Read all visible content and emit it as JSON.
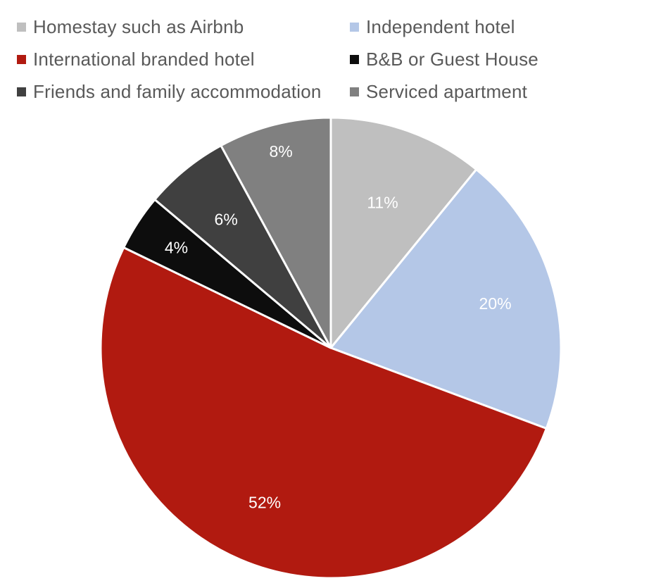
{
  "chart_data": {
    "type": "pie",
    "title": "",
    "legend_position": "top",
    "series": [
      {
        "labels": [
          "Homestay such as Airbnb",
          "Independent hotel",
          "International branded hotel",
          "B&B or Guest House",
          "Friends and family accommodation",
          "Serviced apartment"
        ],
        "values": [
          11,
          20,
          52,
          4,
          6,
          8
        ],
        "data_labels": [
          "11%",
          "20%",
          "52%",
          "4%",
          "6%",
          "8%"
        ],
        "colors": [
          "#bfbfbf",
          "#b4c7e7",
          "#b11a10",
          "#0d0d0d",
          "#404040",
          "#808080"
        ],
        "label_colors": [
          "#ffffff",
          "#ffffff",
          "#ffffff",
          "#ffffff",
          "#ffffff",
          "#ffffff"
        ]
      }
    ],
    "legend": [
      {
        "label": "Homestay such as Airbnb",
        "color": "#bfbfbf"
      },
      {
        "label": "Independent hotel",
        "color": "#b4c7e7"
      },
      {
        "label": "International branded hotel",
        "color": "#b11a10"
      },
      {
        "label": "B&B or Guest House",
        "color": "#0d0d0d"
      },
      {
        "label": "Friends and family accommodation",
        "color": "#404040"
      },
      {
        "label": "Serviced apartment",
        "color": "#808080"
      }
    ]
  }
}
